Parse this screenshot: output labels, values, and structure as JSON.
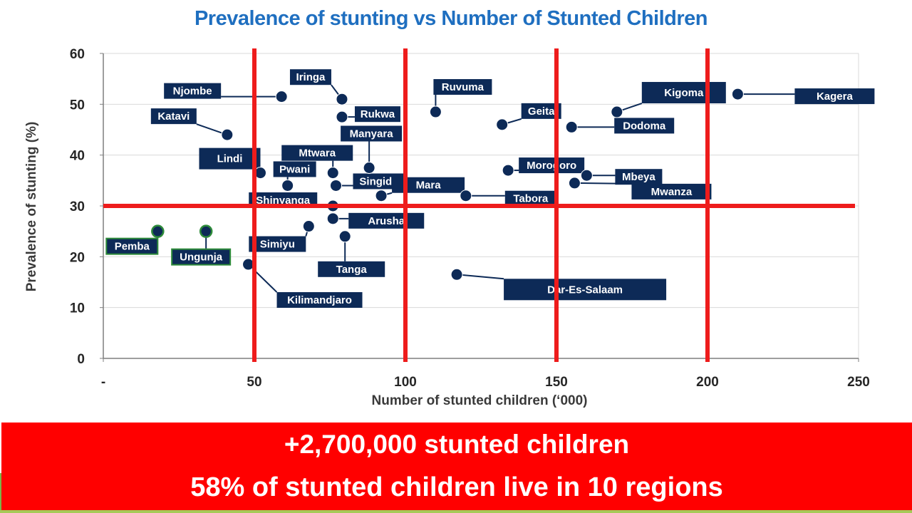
{
  "chart_data": {
    "type": "scatter",
    "title": "Prevalence of stunting vs Number of Stunted Children",
    "xlabel": "Number of stunted children (‘000)",
    "ylabel": "Prevalence of stunting (%)",
    "xlim": [
      0,
      250
    ],
    "ylim": [
      0,
      60
    ],
    "xticks": [
      0,
      50,
      100,
      150,
      200,
      250
    ],
    "xtick_labels": [
      "-",
      "50",
      "100",
      "150",
      "200",
      "250"
    ],
    "yticks": [
      0,
      10,
      20,
      30,
      40,
      50,
      60
    ],
    "ytick_labels": [
      "0",
      "10",
      "20",
      "30",
      "40",
      "50",
      "60"
    ],
    "grid": true,
    "reference_lines": {
      "vertical_x": [
        50,
        100,
        150,
        200
      ],
      "horizontal_y": [
        30
      ],
      "color": "#ee1c1c"
    },
    "points": [
      {
        "label": "Pemba",
        "x": 18,
        "y": 25,
        "group": "zanzibar"
      },
      {
        "label": "Ungunja",
        "x": 34,
        "y": 25,
        "group": "zanzibar"
      },
      {
        "label": "Katavi",
        "x": 41,
        "y": 44,
        "group": "mainland"
      },
      {
        "label": "Kilimandjaro",
        "x": 48,
        "y": 18.5,
        "group": "mainland"
      },
      {
        "label": "Lindi",
        "x": 52,
        "y": 36.5,
        "group": "mainland"
      },
      {
        "label": "Njombe",
        "x": 59,
        "y": 51.5,
        "group": "mainland"
      },
      {
        "label": "Pwani",
        "x": 61,
        "y": 34,
        "group": "mainland"
      },
      {
        "label": "Simiyu",
        "x": 68,
        "y": 26,
        "group": "mainland"
      },
      {
        "label": "Shinyanga",
        "x": 76,
        "y": 30,
        "group": "mainland"
      },
      {
        "label": "Arusha",
        "x": 76,
        "y": 27.5,
        "group": "mainland"
      },
      {
        "label": "Mtwara",
        "x": 76,
        "y": 36.5,
        "group": "mainland"
      },
      {
        "label": "Singida",
        "x": 77,
        "y": 34,
        "group": "mainland"
      },
      {
        "label": "Iringa",
        "x": 79,
        "y": 51,
        "group": "mainland"
      },
      {
        "label": "Rukwa",
        "x": 79,
        "y": 47.5,
        "group": "mainland"
      },
      {
        "label": "Tanga",
        "x": 80,
        "y": 24,
        "group": "mainland"
      },
      {
        "label": "Manyara",
        "x": 88,
        "y": 37.5,
        "group": "mainland"
      },
      {
        "label": "Mara",
        "x": 92,
        "y": 32,
        "group": "mainland"
      },
      {
        "label": "Ruvuma",
        "x": 110,
        "y": 48.5,
        "group": "mainland"
      },
      {
        "label": "Dar-Es-Salaam",
        "x": 117,
        "y": 16.5,
        "group": "mainland"
      },
      {
        "label": "Tabora",
        "x": 120,
        "y": 32,
        "group": "mainland"
      },
      {
        "label": "Geita",
        "x": 132,
        "y": 46,
        "group": "mainland"
      },
      {
        "label": "Morogoro",
        "x": 134,
        "y": 37,
        "group": "mainland"
      },
      {
        "label": "Dodoma",
        "x": 155,
        "y": 45.5,
        "group": "mainland"
      },
      {
        "label": "Mwanza",
        "x": 156,
        "y": 34.5,
        "group": "mainland"
      },
      {
        "label": "Mbeya",
        "x": 160,
        "y": 36,
        "group": "mainland"
      },
      {
        "label": "Kigoma",
        "x": 170,
        "y": 48.5,
        "group": "mainland"
      },
      {
        "label": "Kagera",
        "x": 210,
        "y": 52,
        "group": "mainland"
      }
    ],
    "colors": {
      "marker": "#0d2a57",
      "label_bg": "#0d2a57",
      "zanzibar_outline": "#2e8b3a",
      "grid": "#d9d9d9",
      "axis": "#7f7f7f"
    }
  },
  "banner": {
    "line1": "+2,700,000 stunted children",
    "line2": "58% of stunted children live in 10 regions",
    "color": "#ff0000"
  }
}
